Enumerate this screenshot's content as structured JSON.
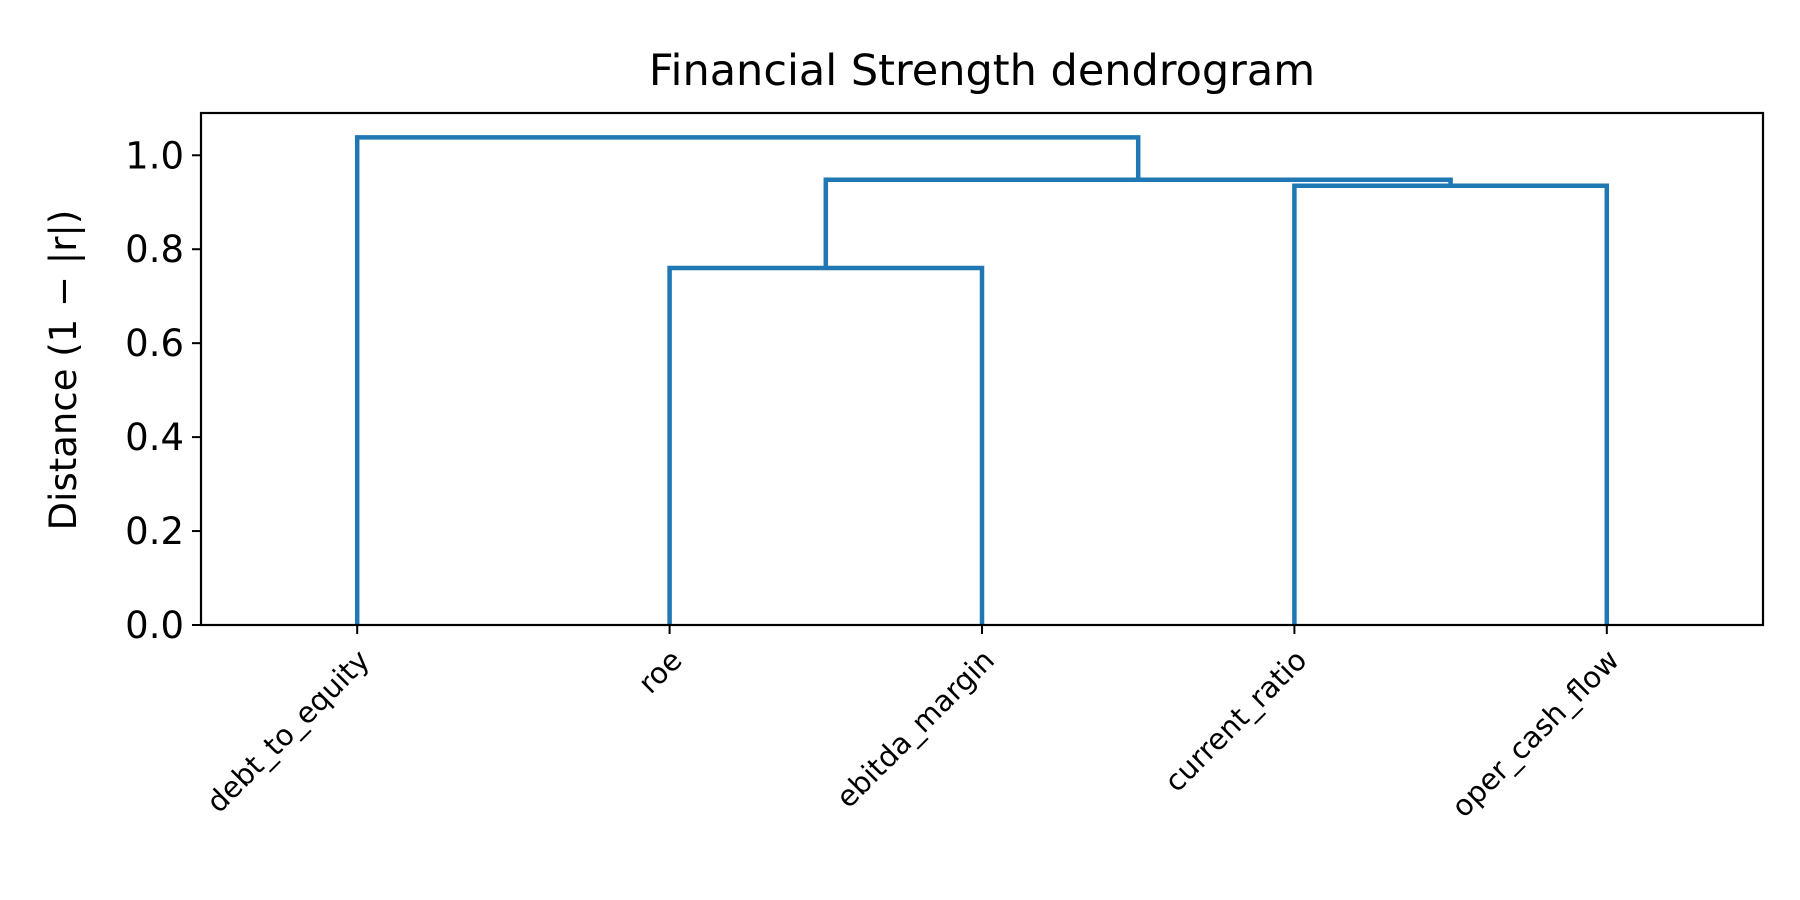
{
  "chart_data": {
    "type": "dendrogram",
    "title": "Financial Strength dendrogram",
    "xlabel": "",
    "ylabel": "Distance (1 − |r|)",
    "ylim": [
      0,
      1.09
    ],
    "yticks": [
      "0.0",
      "0.2",
      "0.4",
      "0.6",
      "0.8",
      "1.0"
    ],
    "leaves": [
      "debt_to_equity",
      "roe",
      "ebitda_margin",
      "current_ratio",
      "oper_cash_flow"
    ],
    "merges": [
      {
        "left": "roe",
        "right": "ebitda_margin",
        "height": 0.76
      },
      {
        "left": "current_ratio",
        "right": "oper_cash_flow",
        "height": 0.935
      },
      {
        "left": "roe + ebitda_margin",
        "right": "current_ratio + oper_cash_flow",
        "height": 0.948
      },
      {
        "left": "debt_to_equity",
        "right": "roe + ebitda_margin + current_ratio + oper_cash_flow",
        "height": 1.038
      }
    ],
    "grid": false,
    "colors": {
      "link": "#1f77b4",
      "axis": "#000000"
    }
  }
}
